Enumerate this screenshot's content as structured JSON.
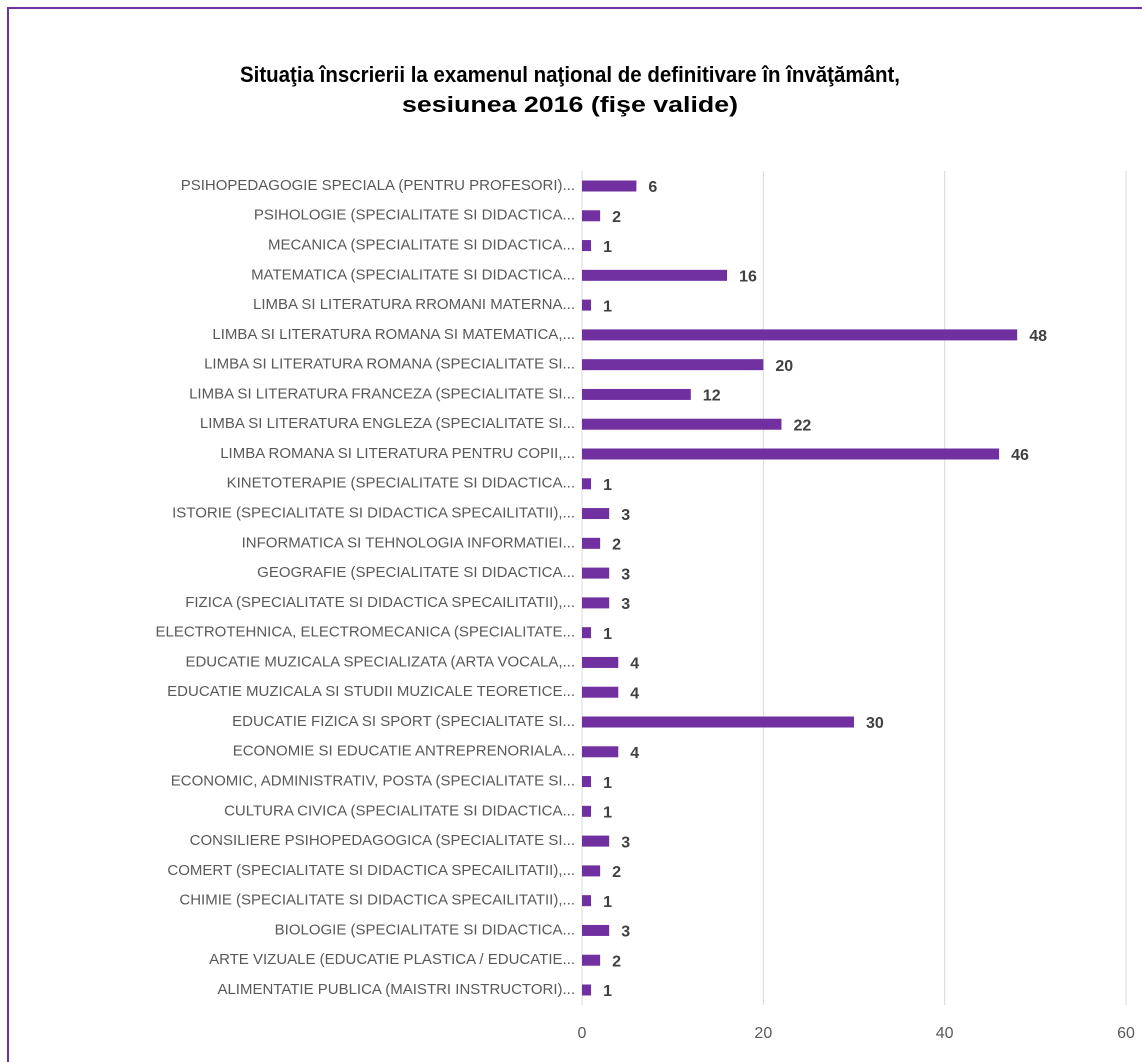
{
  "chart_data": {
    "type": "barh",
    "title": [
      "Situaţia înscrierii la examenul naţional de definitivare în învăţământ,",
      "sesiunea 2016 (fişe valide)"
    ],
    "categories": [
      "PSIHOPEDAGOGIE SPECIALA (PENTRU PROFESORI)...",
      "PSIHOLOGIE (SPECIALITATE SI DIDACTICA...",
      "MECANICA (SPECIALITATE SI DIDACTICA...",
      "MATEMATICA (SPECIALITATE SI DIDACTICA...",
      "LIMBA SI LITERATURA RROMANI MATERNA...",
      "LIMBA SI LITERATURA ROMANA SI MATEMATICA,...",
      "LIMBA SI LITERATURA ROMANA (SPECIALITATE SI...",
      "LIMBA SI LITERATURA FRANCEZA (SPECIALITATE SI...",
      "LIMBA SI LITERATURA ENGLEZA (SPECIALITATE SI...",
      "LIMBA ROMANA SI LITERATURA PENTRU COPII,...",
      "KINETOTERAPIE (SPECIALITATE SI DIDACTICA...",
      "ISTORIE (SPECIALITATE SI DIDACTICA SPECAILITATII),...",
      "INFORMATICA SI TEHNOLOGIA INFORMATIEI...",
      "GEOGRAFIE (SPECIALITATE SI DIDACTICA...",
      "FIZICA (SPECIALITATE SI DIDACTICA SPECAILITATII),...",
      "ELECTROTEHNICA, ELECTROMECANICA (SPECIALITATE...",
      "EDUCATIE MUZICALA SPECIALIZATA (ARTA VOCALA,...",
      "EDUCATIE MUZICALA SI STUDII MUZICALE TEORETICE...",
      "EDUCATIE FIZICA SI SPORT (SPECIALITATE SI...",
      "ECONOMIE SI EDUCATIE ANTREPRENORIALA...",
      "ECONOMIC, ADMINISTRATIV, POSTA (SPECIALITATE SI...",
      "CULTURA CIVICA (SPECIALITATE SI DIDACTICA...",
      "CONSILIERE PSIHOPEDAGOGICA (SPECIALITATE SI...",
      "COMERT (SPECIALITATE SI DIDACTICA SPECAILITATII),...",
      "CHIMIE (SPECIALITATE SI DIDACTICA SPECAILITATII),...",
      "BIOLOGIE (SPECIALITATE SI DIDACTICA...",
      "ARTE VIZUALE (EDUCATIE PLASTICA / EDUCATIE...",
      "ALIMENTATIE PUBLICA (MAISTRI INSTRUCTORI)..."
    ],
    "values": [
      6,
      2,
      1,
      16,
      1,
      48,
      20,
      12,
      22,
      46,
      1,
      3,
      2,
      3,
      3,
      1,
      4,
      4,
      30,
      4,
      1,
      1,
      3,
      2,
      1,
      3,
      2,
      1
    ],
    "color": "#7030a0",
    "xlim": [
      0,
      60
    ],
    "xticks": [
      0,
      20,
      40,
      60
    ],
    "grid": true
  }
}
